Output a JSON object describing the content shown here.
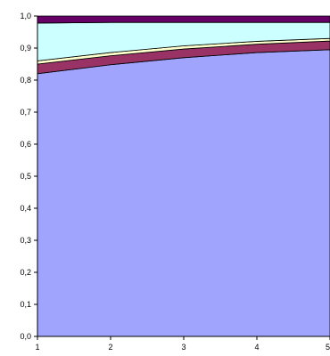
{
  "chart_data": {
    "type": "area",
    "stacked": true,
    "x": [
      1,
      2,
      3,
      4,
      5
    ],
    "x_tick_labels": [
      "1",
      "2",
      "3",
      "4",
      "5"
    ],
    "ylim": [
      0,
      1
    ],
    "y_ticks": [
      0,
      0.1,
      0.2,
      0.3,
      0.4,
      0.5,
      0.6,
      0.7,
      0.8,
      0.9,
      1.0
    ],
    "y_tick_labels": [
      "0,0",
      "0,1",
      "0,2",
      "0,3",
      "0,4",
      "0,5",
      "0,6",
      "0,7",
      "0,8",
      "0,9",
      "1,0"
    ],
    "grid": false,
    "legend": "none",
    "series": [
      {
        "color": "#a0a4fc",
        "values": [
          0.82,
          0.848,
          0.87,
          0.886,
          0.895
        ]
      },
      {
        "color": "#993366",
        "values": [
          0.03,
          0.028,
          0.027,
          0.026,
          0.027
        ]
      },
      {
        "color": "#ffffcc",
        "values": [
          0.01,
          0.01,
          0.01,
          0.009,
          0.008
        ]
      },
      {
        "color": "#ccffff",
        "values": [
          0.118,
          0.094,
          0.073,
          0.059,
          0.05
        ]
      },
      {
        "color": "#660066",
        "values": [
          0.022,
          0.02,
          0.02,
          0.02,
          0.02
        ]
      }
    ]
  }
}
